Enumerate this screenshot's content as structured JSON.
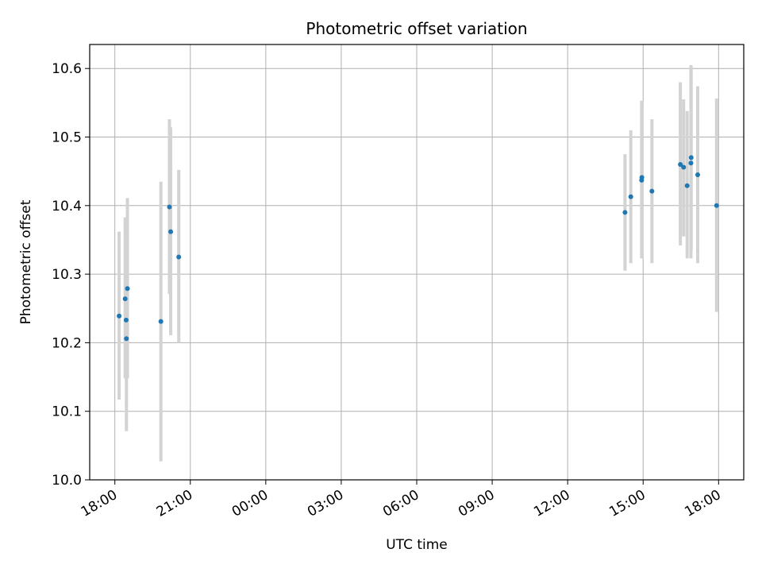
{
  "chart_data": {
    "type": "scatter",
    "title": "Photometric offset variation",
    "xlabel": "UTC time",
    "ylabel": "Photometric offset",
    "x_unit": "hours",
    "xlim": [
      17.0,
      43.0
    ],
    "ylim": [
      10.0,
      10.635
    ],
    "grid": true,
    "x_ticks": [
      {
        "value": 18,
        "label": "18:00"
      },
      {
        "value": 21,
        "label": "21:00"
      },
      {
        "value": 24,
        "label": "00:00"
      },
      {
        "value": 27,
        "label": "03:00"
      },
      {
        "value": 30,
        "label": "06:00"
      },
      {
        "value": 33,
        "label": "09:00"
      },
      {
        "value": 36,
        "label": "12:00"
      },
      {
        "value": 39,
        "label": "15:00"
      },
      {
        "value": 42,
        "label": "18:00"
      }
    ],
    "y_ticks": [
      {
        "value": 10.0,
        "label": "10.0"
      },
      {
        "value": 10.1,
        "label": "10.1"
      },
      {
        "value": 10.2,
        "label": "10.2"
      },
      {
        "value": 10.3,
        "label": "10.3"
      },
      {
        "value": 10.4,
        "label": "10.4"
      },
      {
        "value": 10.5,
        "label": "10.5"
      },
      {
        "value": 10.6,
        "label": "10.6"
      }
    ],
    "points": [
      {
        "x": 18.17,
        "y": 10.239,
        "lo": 10.117,
        "hi": 10.362
      },
      {
        "x": 18.41,
        "y": 10.264,
        "lo": 10.148,
        "hi": 10.383
      },
      {
        "x": 18.45,
        "y": 10.233,
        "lo": 10.148,
        "hi": 10.278
      },
      {
        "x": 18.46,
        "y": 10.206,
        "lo": 10.071,
        "hi": 10.341
      },
      {
        "x": 18.5,
        "y": 10.279,
        "lo": 10.148,
        "hi": 10.411
      },
      {
        "x": 19.83,
        "y": 10.231,
        "lo": 10.027,
        "hi": 10.435
      },
      {
        "x": 20.17,
        "y": 10.398,
        "lo": 10.271,
        "hi": 10.526
      },
      {
        "x": 20.22,
        "y": 10.362,
        "lo": 10.211,
        "hi": 10.514
      },
      {
        "x": 20.54,
        "y": 10.325,
        "lo": 10.2,
        "hi": 10.452
      },
      {
        "x": 38.28,
        "y": 10.39,
        "lo": 10.305,
        "hi": 10.475
      },
      {
        "x": 38.51,
        "y": 10.413,
        "lo": 10.316,
        "hi": 10.51
      },
      {
        "x": 38.94,
        "y": 10.437,
        "lo": 10.323,
        "hi": 10.553
      },
      {
        "x": 38.95,
        "y": 10.441,
        "lo": 10.33,
        "hi": 10.55
      },
      {
        "x": 39.35,
        "y": 10.421,
        "lo": 10.316,
        "hi": 10.526
      },
      {
        "x": 40.48,
        "y": 10.46,
        "lo": 10.342,
        "hi": 10.58
      },
      {
        "x": 40.61,
        "y": 10.456,
        "lo": 10.355,
        "hi": 10.555
      },
      {
        "x": 40.75,
        "y": 10.429,
        "lo": 10.323,
        "hi": 10.538
      },
      {
        "x": 40.9,
        "y": 10.462,
        "lo": 10.323,
        "hi": 10.605
      },
      {
        "x": 40.91,
        "y": 10.47,
        "lo": 10.335,
        "hi": 10.603
      },
      {
        "x": 41.17,
        "y": 10.445,
        "lo": 10.316,
        "hi": 10.574
      },
      {
        "x": 41.92,
        "y": 10.4,
        "lo": 10.245,
        "hi": 10.556
      }
    ],
    "colors": {
      "point": "#1f77b4",
      "errorbar": "#d3d3d3",
      "grid": "#b0b0b0",
      "axes": "#000000"
    }
  }
}
